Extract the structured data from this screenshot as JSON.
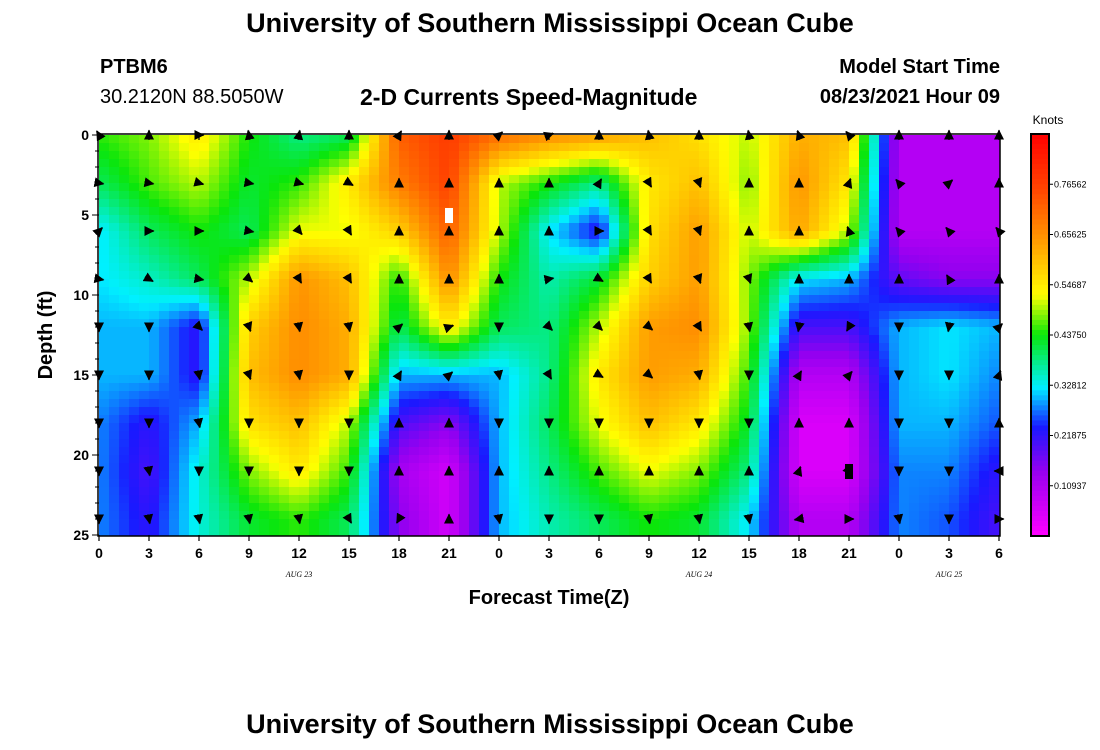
{
  "header": {
    "title": "University of Southern Mississippi Ocean Cube",
    "station": "PTBM6",
    "coordinates": "30.2120N  88.5050W",
    "product": "2-D Currents Speed-Magnitude",
    "model_start_label": "Model Start Time",
    "model_start_value": "08/23/2021 Hour 09"
  },
  "footer": {
    "title": "University of Southern Mississippi Ocean Cube"
  },
  "chart_data": {
    "type": "heatmap",
    "xlabel": "Forecast Time(Z)",
    "ylabel": "Depth (ft)",
    "x_ticks": [
      "0",
      "3",
      "6",
      "9",
      "12",
      "15",
      "18",
      "21",
      "0",
      "3",
      "6",
      "9",
      "12",
      "15",
      "18",
      "21",
      "0",
      "3",
      "6"
    ],
    "date_labels": [
      {
        "text": "AUG  23",
        "at_hour": 12
      },
      {
        "text": "AUG  24",
        "at_hour": 36
      },
      {
        "text": "AUG  25",
        "at_hour": 51
      }
    ],
    "x_range_hours": [
      0,
      54
    ],
    "y_ticks": [
      0,
      5,
      10,
      15,
      20,
      25
    ],
    "ylim": [
      25,
      0
    ],
    "colorbar": {
      "label": "Knots",
      "range": [
        0,
        0.875
      ],
      "ticks": [
        0.10937,
        0.21875,
        0.32812,
        0.4375,
        0.54687,
        0.65625,
        0.76562
      ],
      "tick_labels": [
        "0.10937",
        "0.21875",
        "0.32812",
        "0.43750",
        "0.54687",
        "0.65625",
        "0.76562"
      ]
    },
    "depths": [
      0,
      3,
      6,
      9,
      12,
      15,
      18,
      21,
      24
    ],
    "times_hours": [
      0,
      3,
      6,
      9,
      12,
      15,
      18,
      21,
      24,
      27,
      30,
      33,
      36,
      39,
      42,
      45,
      48,
      51,
      54
    ],
    "speed": [
      [
        0.45,
        0.48,
        0.55,
        0.44,
        0.38,
        0.4,
        0.72,
        0.77,
        0.7,
        0.66,
        0.64,
        0.6,
        0.56,
        0.5,
        0.62,
        0.6,
        0.1,
        0.1,
        0.1
      ],
      [
        0.4,
        0.46,
        0.5,
        0.42,
        0.45,
        0.55,
        0.68,
        0.76,
        0.5,
        0.44,
        0.38,
        0.55,
        0.6,
        0.48,
        0.65,
        0.55,
        0.1,
        0.1,
        0.1
      ],
      [
        0.32,
        0.4,
        0.44,
        0.4,
        0.52,
        0.52,
        0.58,
        0.72,
        0.5,
        0.32,
        0.22,
        0.56,
        0.64,
        0.5,
        0.63,
        0.5,
        0.1,
        0.1,
        0.1
      ],
      [
        0.32,
        0.35,
        0.4,
        0.5,
        0.65,
        0.6,
        0.44,
        0.66,
        0.44,
        0.36,
        0.42,
        0.58,
        0.64,
        0.48,
        0.32,
        0.3,
        0.18,
        0.15,
        0.15
      ],
      [
        0.3,
        0.3,
        0.22,
        0.58,
        0.66,
        0.62,
        0.4,
        0.55,
        0.4,
        0.38,
        0.5,
        0.64,
        0.66,
        0.48,
        0.2,
        0.2,
        0.3,
        0.32,
        0.3
      ],
      [
        0.3,
        0.3,
        0.22,
        0.6,
        0.66,
        0.62,
        0.3,
        0.3,
        0.3,
        0.38,
        0.55,
        0.64,
        0.62,
        0.45,
        0.1,
        0.1,
        0.3,
        0.32,
        0.28
      ],
      [
        0.28,
        0.22,
        0.3,
        0.56,
        0.6,
        0.5,
        0.2,
        0.15,
        0.3,
        0.4,
        0.52,
        0.6,
        0.55,
        0.42,
        0.05,
        0.05,
        0.3,
        0.3,
        0.26
      ],
      [
        0.28,
        0.2,
        0.34,
        0.48,
        0.55,
        0.45,
        0.12,
        0.06,
        0.3,
        0.38,
        0.46,
        0.52,
        0.48,
        0.38,
        0.05,
        0.05,
        0.28,
        0.28,
        0.22
      ],
      [
        0.28,
        0.22,
        0.34,
        0.42,
        0.45,
        0.4,
        0.15,
        0.06,
        0.3,
        0.36,
        0.4,
        0.44,
        0.42,
        0.32,
        0.1,
        0.1,
        0.28,
        0.26,
        0.2
      ]
    ],
    "arrow_depths": [
      0,
      3,
      6,
      9,
      12,
      15,
      18,
      21,
      24
    ],
    "arrow_angles_deg": [
      [
        -120,
        -90,
        0,
        -100,
        -80,
        -90,
        -60,
        -90,
        -40,
        -20,
        -90,
        -100,
        -90,
        -100,
        -110,
        -130,
        -90,
        -90,
        -90
      ],
      [
        10,
        10,
        15,
        10,
        15,
        30,
        -90,
        -90,
        -90,
        -90,
        -60,
        60,
        70,
        -90,
        -90,
        -70,
        -130,
        -40,
        -90
      ],
      [
        -45,
        0,
        0,
        10,
        50,
        60,
        -90,
        -90,
        -90,
        -90,
        0,
        60,
        70,
        -90,
        -90,
        -110,
        -130,
        -130,
        -130
      ],
      [
        10,
        30,
        10,
        40,
        60,
        60,
        -90,
        -90,
        -90,
        -10,
        30,
        60,
        70,
        70,
        -90,
        -90,
        -90,
        -120,
        -90
      ],
      [
        90,
        90,
        45,
        70,
        80,
        80,
        -40,
        -20,
        90,
        45,
        45,
        40,
        60,
        80,
        100,
        120,
        90,
        100,
        -45
      ],
      [
        90,
        90,
        80,
        70,
        80,
        90,
        -60,
        -40,
        80,
        60,
        30,
        40,
        80,
        90,
        -60,
        -50,
        90,
        90,
        -70
      ],
      [
        90,
        90,
        80,
        90,
        90,
        90,
        -90,
        -90,
        90,
        90,
        90,
        90,
        90,
        90,
        -90,
        -90,
        90,
        90,
        -90
      ],
      [
        90,
        80,
        90,
        90,
        90,
        90,
        -90,
        -90,
        -90,
        -90,
        -90,
        -90,
        -90,
        -90,
        -70,
        50,
        90,
        90,
        180
      ],
      [
        90,
        80,
        80,
        80,
        80,
        60,
        120,
        -90,
        80,
        90,
        90,
        80,
        80,
        80,
        170,
        0,
        80,
        90,
        0
      ]
    ],
    "markers": [
      {
        "hour": 21,
        "depth": 5,
        "color": "#ffffff"
      },
      {
        "hour": 45,
        "depth": 21,
        "color": "#000000"
      }
    ]
  }
}
